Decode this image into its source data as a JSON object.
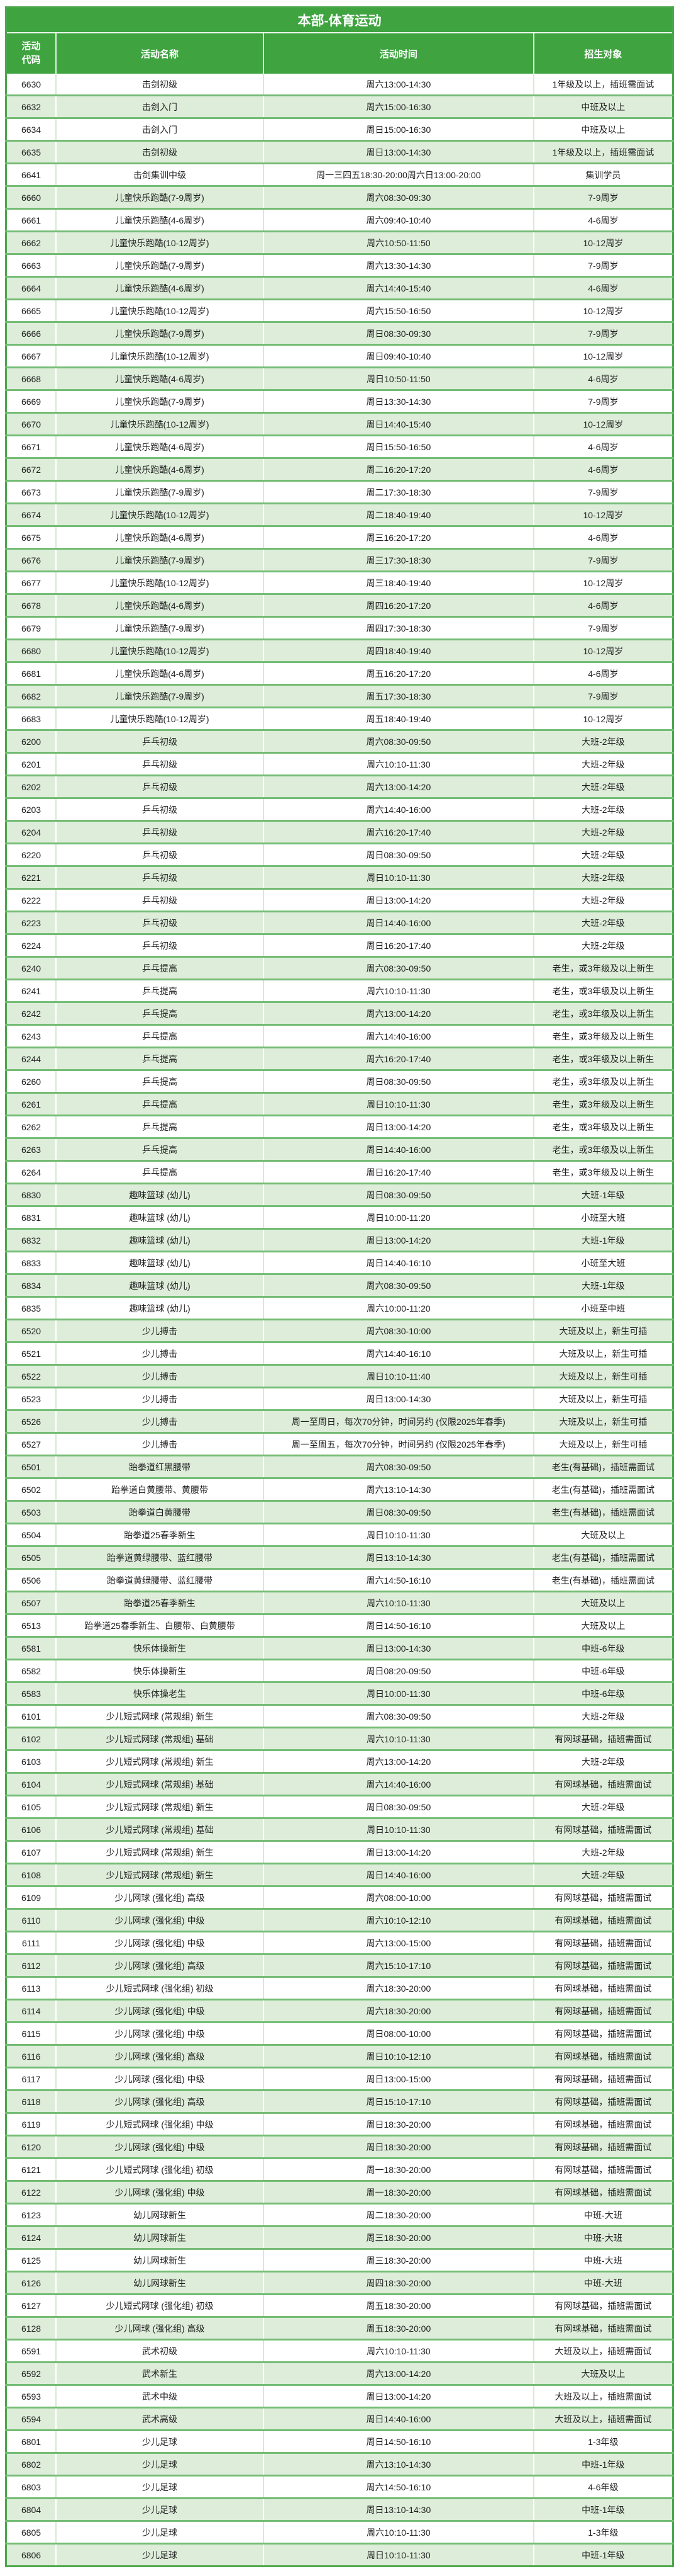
{
  "colors": {
    "header_green": "#3FA440",
    "outer_green": "#4AA74A",
    "sep_green": "#74BC74",
    "row_alt_green": "#DEEDDA",
    "vline_white_row": "#D6E9D2",
    "vline_green_row": "#FFFFFF",
    "text_color": "#1F1F1F",
    "header_text": "#FFFFFF"
  },
  "table": {
    "title": "本部-体育运动",
    "columns": [
      "活动代码",
      "活动名称",
      "活动时间",
      "招生对象"
    ],
    "rows": [
      {
        "code": "6630",
        "name": "击剑初级",
        "time": "周六13:00-14:30",
        "target": "1年级及以上，插班需面试"
      },
      {
        "code": "6632",
        "name": "击剑入门",
        "time": "周六15:00-16:30",
        "target": "中班及以上"
      },
      {
        "code": "6634",
        "name": "击剑入门",
        "time": "周日15:00-16:30",
        "target": "中班及以上"
      },
      {
        "code": "6635",
        "name": "击剑初级",
        "time": "周日13:00-14:30",
        "target": "1年级及以上，插班需面试"
      },
      {
        "code": "6641",
        "name": "击剑集训中级",
        "time": "周一三四五18:30-20:00周六日13:00-20:00",
        "target": "集训学员"
      },
      {
        "code": "6660",
        "name": "儿童快乐跑酷(7-9周岁)",
        "time": "周六08:30-09:30",
        "target": "7-9周岁"
      },
      {
        "code": "6661",
        "name": "儿童快乐跑酷(4-6周岁)",
        "time": "周六09:40-10:40",
        "target": "4-6周岁"
      },
      {
        "code": "6662",
        "name": "儿童快乐跑酷(10-12周岁)",
        "time": "周六10:50-11:50",
        "target": "10-12周岁"
      },
      {
        "code": "6663",
        "name": "儿童快乐跑酷(7-9周岁)",
        "time": "周六13:30-14:30",
        "target": "7-9周岁"
      },
      {
        "code": "6664",
        "name": "儿童快乐跑酷(4-6周岁)",
        "time": "周六14:40-15:40",
        "target": "4-6周岁"
      },
      {
        "code": "6665",
        "name": "儿童快乐跑酷(10-12周岁)",
        "time": "周六15:50-16:50",
        "target": "10-12周岁"
      },
      {
        "code": "6666",
        "name": "儿童快乐跑酷(7-9周岁)",
        "time": "周日08:30-09:30",
        "target": "7-9周岁"
      },
      {
        "code": "6667",
        "name": "儿童快乐跑酷(10-12周岁)",
        "time": "周日09:40-10:40",
        "target": "10-12周岁"
      },
      {
        "code": "6668",
        "name": "儿童快乐跑酷(4-6周岁)",
        "time": "周日10:50-11:50",
        "target": "4-6周岁"
      },
      {
        "code": "6669",
        "name": "儿童快乐跑酷(7-9周岁)",
        "time": "周日13:30-14:30",
        "target": "7-9周岁"
      },
      {
        "code": "6670",
        "name": "儿童快乐跑酷(10-12周岁)",
        "time": "周日14:40-15:40",
        "target": "10-12周岁"
      },
      {
        "code": "6671",
        "name": "儿童快乐跑酷(4-6周岁)",
        "time": "周日15:50-16:50",
        "target": "4-6周岁"
      },
      {
        "code": "6672",
        "name": "儿童快乐跑酷(4-6周岁)",
        "time": "周二16:20-17:20",
        "target": "4-6周岁"
      },
      {
        "code": "6673",
        "name": "儿童快乐跑酷(7-9周岁)",
        "time": "周二17:30-18:30",
        "target": "7-9周岁"
      },
      {
        "code": "6674",
        "name": "儿童快乐跑酷(10-12周岁)",
        "time": "周二18:40-19:40",
        "target": "10-12周岁"
      },
      {
        "code": "6675",
        "name": "儿童快乐跑酷(4-6周岁)",
        "time": "周三16:20-17:20",
        "target": "4-6周岁"
      },
      {
        "code": "6676",
        "name": "儿童快乐跑酷(7-9周岁)",
        "time": "周三17:30-18:30",
        "target": "7-9周岁"
      },
      {
        "code": "6677",
        "name": "儿童快乐跑酷(10-12周岁)",
        "time": "周三18:40-19:40",
        "target": "10-12周岁"
      },
      {
        "code": "6678",
        "name": "儿童快乐跑酷(4-6周岁)",
        "time": "周四16:20-17:20",
        "target": "4-6周岁"
      },
      {
        "code": "6679",
        "name": "儿童快乐跑酷(7-9周岁)",
        "time": "周四17:30-18:30",
        "target": "7-9周岁"
      },
      {
        "code": "6680",
        "name": "儿童快乐跑酷(10-12周岁)",
        "time": "周四18:40-19:40",
        "target": "10-12周岁"
      },
      {
        "code": "6681",
        "name": "儿童快乐跑酷(4-6周岁)",
        "time": "周五16:20-17:20",
        "target": "4-6周岁"
      },
      {
        "code": "6682",
        "name": "儿童快乐跑酷(7-9周岁)",
        "time": "周五17:30-18:30",
        "target": "7-9周岁"
      },
      {
        "code": "6683",
        "name": "儿童快乐跑酷(10-12周岁)",
        "time": "周五18:40-19:40",
        "target": "10-12周岁"
      },
      {
        "code": "6200",
        "name": "乒乓初级",
        "time": "周六08:30-09:50",
        "target": "大班-2年级"
      },
      {
        "code": "6201",
        "name": "乒乓初级",
        "time": "周六10:10-11:30",
        "target": "大班-2年级"
      },
      {
        "code": "6202",
        "name": "乒乓初级",
        "time": "周六13:00-14:20",
        "target": "大班-2年级"
      },
      {
        "code": "6203",
        "name": "乒乓初级",
        "time": "周六14:40-16:00",
        "target": "大班-2年级"
      },
      {
        "code": "6204",
        "name": "乒乓初级",
        "time": "周六16:20-17:40",
        "target": "大班-2年级"
      },
      {
        "code": "6220",
        "name": "乒乓初级",
        "time": "周日08:30-09:50",
        "target": "大班-2年级"
      },
      {
        "code": "6221",
        "name": "乒乓初级",
        "time": "周日10:10-11:30",
        "target": "大班-2年级"
      },
      {
        "code": "6222",
        "name": "乒乓初级",
        "time": "周日13:00-14:20",
        "target": "大班-2年级"
      },
      {
        "code": "6223",
        "name": "乒乓初级",
        "time": "周日14:40-16:00",
        "target": "大班-2年级"
      },
      {
        "code": "6224",
        "name": "乒乓初级",
        "time": "周日16:20-17:40",
        "target": "大班-2年级"
      },
      {
        "code": "6240",
        "name": "乒乓提高",
        "time": "周六08:30-09:50",
        "target": "老生，或3年级及以上新生"
      },
      {
        "code": "6241",
        "name": "乒乓提高",
        "time": "周六10:10-11:30",
        "target": "老生，或3年级及以上新生"
      },
      {
        "code": "6242",
        "name": "乒乓提高",
        "time": "周六13:00-14:20",
        "target": "老生，或3年级及以上新生"
      },
      {
        "code": "6243",
        "name": "乒乓提高",
        "time": "周六14:40-16:00",
        "target": "老生，或3年级及以上新生"
      },
      {
        "code": "6244",
        "name": "乒乓提高",
        "time": "周六16:20-17:40",
        "target": "老生，或3年级及以上新生"
      },
      {
        "code": "6260",
        "name": "乒乓提高",
        "time": "周日08:30-09:50",
        "target": "老生，或3年级及以上新生"
      },
      {
        "code": "6261",
        "name": "乒乓提高",
        "time": "周日10:10-11:30",
        "target": "老生，或3年级及以上新生"
      },
      {
        "code": "6262",
        "name": "乒乓提高",
        "time": "周日13:00-14:20",
        "target": "老生，或3年级及以上新生"
      },
      {
        "code": "6263",
        "name": "乒乓提高",
        "time": "周日14:40-16:00",
        "target": "老生，或3年级及以上新生"
      },
      {
        "code": "6264",
        "name": "乒乓提高",
        "time": "周日16:20-17:40",
        "target": "老生，或3年级及以上新生"
      },
      {
        "code": "6830",
        "name": "趣味篮球 (幼儿)",
        "time": "周日08:30-09:50",
        "target": "大班-1年级"
      },
      {
        "code": "6831",
        "name": "趣味篮球 (幼儿)",
        "time": "周日10:00-11:20",
        "target": "小班至大班"
      },
      {
        "code": "6832",
        "name": "趣味篮球 (幼儿)",
        "time": "周日13:00-14:20",
        "target": "大班-1年级"
      },
      {
        "code": "6833",
        "name": "趣味篮球 (幼儿)",
        "time": "周日14:40-16:10",
        "target": "小班至大班"
      },
      {
        "code": "6834",
        "name": "趣味篮球 (幼儿)",
        "time": "周六08:30-09:50",
        "target": "大班-1年级"
      },
      {
        "code": "6835",
        "name": "趣味篮球 (幼儿)",
        "time": "周六10:00-11:20",
        "target": "小班至中班"
      },
      {
        "code": "6520",
        "name": "少儿搏击",
        "time": "周六08:30-10:00",
        "target": "大班及以上，新生可插"
      },
      {
        "code": "6521",
        "name": "少儿搏击",
        "time": "周六14:40-16:10",
        "target": "大班及以上，新生可插"
      },
      {
        "code": "6522",
        "name": "少儿搏击",
        "time": "周日10:10-11:40",
        "target": "大班及以上，新生可插"
      },
      {
        "code": "6523",
        "name": "少儿搏击",
        "time": "周日13:00-14:30",
        "target": "大班及以上，新生可插"
      },
      {
        "code": "6526",
        "name": "少儿搏击",
        "time": "周一至周日，每次70分钟，时间另约 (仅限2025年春季)",
        "target": "大班及以上，新生可插"
      },
      {
        "code": "6527",
        "name": "少儿搏击",
        "time": "周一至周五，每次70分钟，时间另约 (仅限2025年春季)",
        "target": "大班及以上，新生可插"
      },
      {
        "code": "6501",
        "name": "跆拳道红黑腰带",
        "time": "周六08:30-09:50",
        "target": "老生(有基础)，插班需面试"
      },
      {
        "code": "6502",
        "name": "跆拳道白黄腰带、黄腰带",
        "time": "周六13:10-14:30",
        "target": "老生(有基础)，插班需面试"
      },
      {
        "code": "6503",
        "name": "跆拳道白黄腰带",
        "time": "周日08:30-09:50",
        "target": "老生(有基础)，插班需面试"
      },
      {
        "code": "6504",
        "name": "跆拳道25春季新生",
        "time": "周日10:10-11:30",
        "target": "大班及以上"
      },
      {
        "code": "6505",
        "name": "跆拳道黄绿腰带、蓝红腰带",
        "time": "周日13:10-14:30",
        "target": "老生(有基础)，插班需面试"
      },
      {
        "code": "6506",
        "name": "跆拳道黄绿腰带、蓝红腰带",
        "time": "周六14:50-16:10",
        "target": "老生(有基础)，插班需面试"
      },
      {
        "code": "6507",
        "name": "跆拳道25春季新生",
        "time": "周六10:10-11:30",
        "target": "大班及以上"
      },
      {
        "code": "6513",
        "name": "跆拳道25春季新生、白腰带、白黄腰带",
        "time": "周日14:50-16:10",
        "target": "大班及以上"
      },
      {
        "code": "6581",
        "name": "快乐体操新生",
        "time": "周日13:00-14:30",
        "target": "中班-6年级"
      },
      {
        "code": "6582",
        "name": "快乐体操新生",
        "time": "周日08:20-09:50",
        "target": "中班-6年级"
      },
      {
        "code": "6583",
        "name": "快乐体操老生",
        "time": "周日10:00-11:30",
        "target": "中班-6年级"
      },
      {
        "code": "6101",
        "name": "少儿短式网球 (常规组) 新生",
        "time": "周六08:30-09:50",
        "target": "大班-2年级"
      },
      {
        "code": "6102",
        "name": "少儿短式网球 (常规组) 基础",
        "time": "周六10:10-11:30",
        "target": "有网球基础，插班需面试"
      },
      {
        "code": "6103",
        "name": "少儿短式网球 (常规组) 新生",
        "time": "周六13:00-14:20",
        "target": "大班-2年级"
      },
      {
        "code": "6104",
        "name": "少儿短式网球 (常规组) 基础",
        "time": "周六14:40-16:00",
        "target": "有网球基础，插班需面试"
      },
      {
        "code": "6105",
        "name": "少儿短式网球 (常规组) 新生",
        "time": "周日08:30-09:50",
        "target": "大班-2年级"
      },
      {
        "code": "6106",
        "name": "少儿短式网球 (常规组) 基础",
        "time": "周日10:10-11:30",
        "target": "有网球基础，插班需面试"
      },
      {
        "code": "6107",
        "name": "少儿短式网球 (常规组) 新生",
        "time": "周日13:00-14:20",
        "target": "大班-2年级"
      },
      {
        "code": "6108",
        "name": "少儿短式网球 (常规组) 新生",
        "time": "周日14:40-16:00",
        "target": "大班-2年级"
      },
      {
        "code": "6109",
        "name": "少儿网球 (强化组) 高级",
        "time": "周六08:00-10:00",
        "target": "有网球基础，插班需面试"
      },
      {
        "code": "6110",
        "name": "少儿网球 (强化组) 中级",
        "time": "周六10:10-12:10",
        "target": "有网球基础，插班需面试"
      },
      {
        "code": "6111",
        "name": "少儿网球 (强化组) 中级",
        "time": "周六13:00-15:00",
        "target": "有网球基础，插班需面试"
      },
      {
        "code": "6112",
        "name": "少儿网球 (强化组) 高级",
        "time": "周六15:10-17:10",
        "target": "有网球基础，插班需面试"
      },
      {
        "code": "6113",
        "name": "少儿短式网球 (强化组) 初级",
        "time": "周六18:30-20:00",
        "target": "有网球基础，插班需面试"
      },
      {
        "code": "6114",
        "name": "少儿网球 (强化组) 中级",
        "time": "周六18:30-20:00",
        "target": "有网球基础，插班需面试"
      },
      {
        "code": "6115",
        "name": "少儿网球 (强化组) 中级",
        "time": "周日08:00-10:00",
        "target": "有网球基础，插班需面试"
      },
      {
        "code": "6116",
        "name": "少儿网球 (强化组) 高级",
        "time": "周日10:10-12:10",
        "target": "有网球基础，插班需面试"
      },
      {
        "code": "6117",
        "name": "少儿网球 (强化组) 中级",
        "time": "周日13:00-15:00",
        "target": "有网球基础，插班需面试"
      },
      {
        "code": "6118",
        "name": "少儿网球 (强化组) 高级",
        "time": "周日15:10-17:10",
        "target": "有网球基础，插班需面试"
      },
      {
        "code": "6119",
        "name": "少儿短式网球 (强化组) 中级",
        "time": "周日18:30-20:00",
        "target": "有网球基础，插班需面试"
      },
      {
        "code": "6120",
        "name": "少儿网球 (强化组) 中级",
        "time": "周日18:30-20:00",
        "target": "有网球基础，插班需面试"
      },
      {
        "code": "6121",
        "name": "少儿短式网球 (强化组) 初级",
        "time": "周一18:30-20:00",
        "target": "有网球基础，插班需面试"
      },
      {
        "code": "6122",
        "name": "少儿网球 (强化组) 中级",
        "time": "周一18:30-20:00",
        "target": "有网球基础，插班需面试"
      },
      {
        "code": "6123",
        "name": "幼儿网球新生",
        "time": "周二18:30-20:00",
        "target": "中班-大班"
      },
      {
        "code": "6124",
        "name": "幼儿网球新生",
        "time": "周三18:30-20:00",
        "target": "中班-大班"
      },
      {
        "code": "6125",
        "name": "幼儿网球新生",
        "time": "周三18:30-20:00",
        "target": "中班-大班"
      },
      {
        "code": "6126",
        "name": "幼儿网球新生",
        "time": "周四18:30-20:00",
        "target": "中班-大班"
      },
      {
        "code": "6127",
        "name": "少儿短式网球 (强化组) 初级",
        "time": "周五18:30-20:00",
        "target": "有网球基础，插班需面试"
      },
      {
        "code": "6128",
        "name": "少儿网球 (强化组) 高级",
        "time": "周五18:30-20:00",
        "target": "有网球基础，插班需面试"
      },
      {
        "code": "6591",
        "name": "武术初级",
        "time": "周六10:10-11:30",
        "target": "大班及以上，插班需面试"
      },
      {
        "code": "6592",
        "name": "武术新生",
        "time": "周六13:00-14:20",
        "target": "大班及以上"
      },
      {
        "code": "6593",
        "name": "武术中级",
        "time": "周日13:00-14:20",
        "target": "大班及以上，插班需面试"
      },
      {
        "code": "6594",
        "name": "武术高级",
        "time": "周日14:40-16:00",
        "target": "大班及以上，插班需面试"
      },
      {
        "code": "6801",
        "name": "少儿足球",
        "time": "周日14:50-16:10",
        "target": "1-3年级"
      },
      {
        "code": "6802",
        "name": "少儿足球",
        "time": "周六13:10-14:30",
        "target": "中班-1年级"
      },
      {
        "code": "6803",
        "name": "少儿足球",
        "time": "周六14:50-16:10",
        "target": "4-6年级"
      },
      {
        "code": "6804",
        "name": "少儿足球",
        "time": "周日13:10-14:30",
        "target": "中班-1年级"
      },
      {
        "code": "6805",
        "name": "少儿足球",
        "time": "周六10:10-11:30",
        "target": "1-3年级"
      },
      {
        "code": "6806",
        "name": "少儿足球",
        "time": "周日10:10-11:30",
        "target": "中班-1年级"
      }
    ]
  }
}
